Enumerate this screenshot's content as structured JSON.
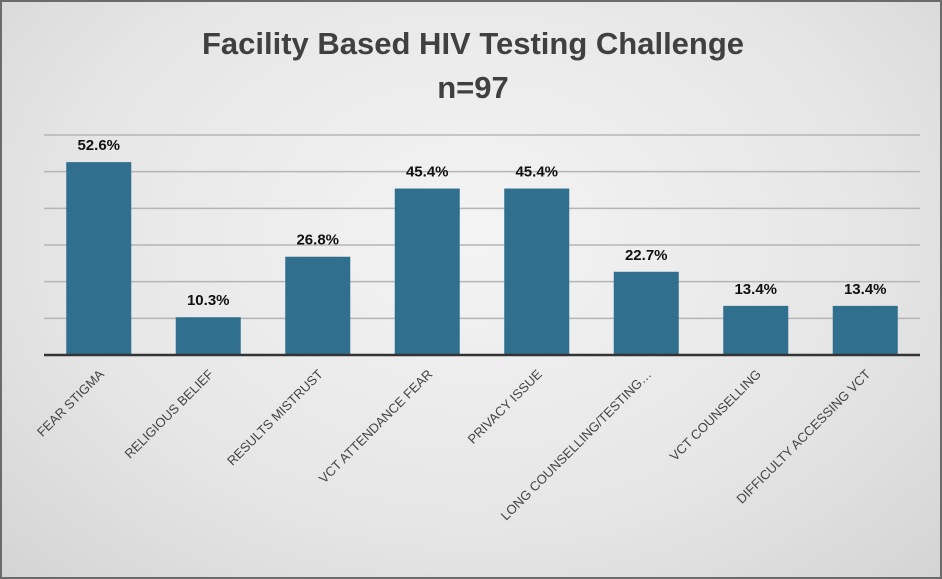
{
  "chart_data": {
    "type": "bar",
    "title": "Facility Based HIV Testing Challenge",
    "subtitle": "n=97",
    "categories": [
      "FEAR STIGMA",
      "RELIGIOUS BELIEF",
      "RESULTS MISTRUST",
      "VCT ATTENDANCE FEAR",
      "PRIVACY ISSUE",
      "LONG COUNSELLING/TESTING…",
      "VCT COUNSELLING",
      "DIFFICULTY ACCESSING VCT"
    ],
    "values": [
      52.6,
      10.3,
      26.8,
      45.4,
      45.4,
      22.7,
      13.4,
      13.4
    ],
    "data_labels": [
      "52.6%",
      "10.3%",
      "26.8%",
      "45.4%",
      "45.4%",
      "22.7%",
      "13.4%",
      "13.4%"
    ],
    "ylim": [
      0,
      60
    ],
    "grid": true,
    "ytick_labels_shown": false,
    "bar_color": "#306f8e",
    "xlabel": "",
    "ylabel": ""
  }
}
